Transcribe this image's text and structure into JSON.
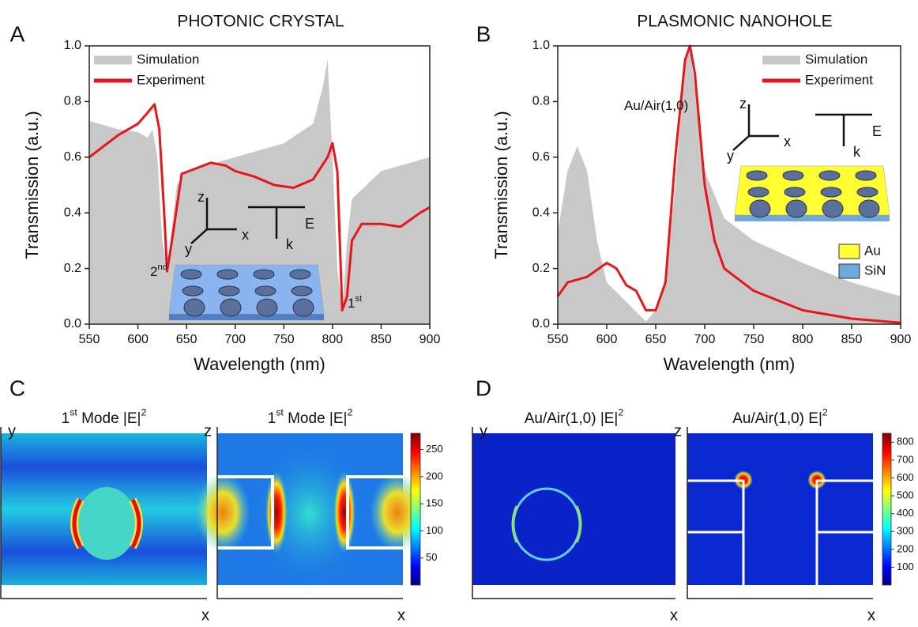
{
  "chart_data": [
    {
      "type": "line",
      "panel_label": "A",
      "title": "PHOTONIC CRYSTAL",
      "xlabel": "Wavelength (nm)",
      "ylabel": "Transmission (a.u.)",
      "xlim": [
        550,
        900
      ],
      "ylim": [
        0,
        1
      ],
      "xticks": [
        550,
        600,
        650,
        700,
        750,
        800,
        850,
        900
      ],
      "yticks": [
        {
          "value": 0,
          "label": "0.0"
        },
        0.2,
        0.4,
        0.6,
        0.8,
        {
          "value": 1,
          "label": "1.0"
        }
      ],
      "legend": "upper left",
      "series": [
        {
          "name": "Simulation",
          "color": "#c8c8c8",
          "fill": true,
          "x": [
            550,
            580,
            600,
            610,
            615,
            620,
            625,
            630,
            640,
            650,
            670,
            700,
            750,
            780,
            790,
            795,
            800,
            805,
            810,
            815,
            820,
            850,
            900
          ],
          "values": [
            0.73,
            0.7,
            0.69,
            0.67,
            0.7,
            0.6,
            0.3,
            0.2,
            0.5,
            0.55,
            0.57,
            0.6,
            0.65,
            0.72,
            0.85,
            0.95,
            0.6,
            0.2,
            0.05,
            0.3,
            0.45,
            0.55,
            0.6
          ]
        },
        {
          "name": "Experiment",
          "color": "#e8161b",
          "fill": false,
          "x": [
            550,
            580,
            600,
            610,
            617,
            622,
            627,
            630,
            635,
            645,
            660,
            675,
            690,
            700,
            720,
            740,
            760,
            780,
            795,
            800,
            805,
            810,
            815,
            820,
            830,
            850,
            870,
            890,
            900
          ],
          "values": [
            0.6,
            0.68,
            0.72,
            0.76,
            0.79,
            0.7,
            0.4,
            0.19,
            0.3,
            0.54,
            0.56,
            0.58,
            0.57,
            0.55,
            0.53,
            0.5,
            0.49,
            0.52,
            0.6,
            0.65,
            0.55,
            0.05,
            0.1,
            0.3,
            0.36,
            0.36,
            0.35,
            0.4,
            0.42
          ]
        }
      ],
      "annotations": [
        {
          "parts": [
            "2",
            "nd"
          ]
        },
        {
          "parts": [
            "1",
            "st"
          ]
        }
      ],
      "inset": {
        "axes": [
          "z",
          "y",
          "x"
        ],
        "field": "E",
        "wavevector": "k"
      }
    },
    {
      "type": "line",
      "panel_label": "B",
      "title": "PLASMONIC NANOHOLE",
      "xlabel": "Wavelength (nm)",
      "ylabel": "Transmission (a.u.)",
      "xlim": [
        550,
        900
      ],
      "ylim": [
        0,
        1
      ],
      "xticks": [
        550,
        600,
        650,
        700,
        750,
        800,
        850,
        900
      ],
      "yticks": [
        {
          "value": 0,
          "label": "0.0"
        },
        0.2,
        0.4,
        0.6,
        0.8,
        {
          "value": 1,
          "label": "1.0"
        }
      ],
      "legend": "upper right",
      "series": [
        {
          "name": "Simulation",
          "color": "#c8c8c8",
          "fill": true,
          "x": [
            550,
            560,
            570,
            580,
            590,
            600,
            620,
            640,
            650,
            660,
            670,
            680,
            685,
            690,
            700,
            720,
            750,
            800,
            850,
            900
          ],
          "values": [
            0.33,
            0.55,
            0.64,
            0.55,
            0.3,
            0.15,
            0.08,
            0.01,
            0.05,
            0.15,
            0.5,
            0.95,
            0.98,
            0.85,
            0.55,
            0.38,
            0.3,
            0.22,
            0.15,
            0.1
          ]
        },
        {
          "name": "Experiment",
          "color": "#e8161b",
          "fill": false,
          "x": [
            550,
            560,
            580,
            600,
            610,
            620,
            630,
            640,
            650,
            660,
            670,
            680,
            685,
            690,
            700,
            710,
            720,
            750,
            800,
            850,
            900
          ],
          "values": [
            0.1,
            0.15,
            0.17,
            0.22,
            0.2,
            0.14,
            0.12,
            0.05,
            0.05,
            0.15,
            0.6,
            0.95,
            1.0,
            0.9,
            0.5,
            0.3,
            0.2,
            0.12,
            0.05,
            0.02,
            0.005
          ]
        }
      ],
      "annotations": [
        {
          "parts": [
            "Au/Air(1,0)"
          ]
        }
      ],
      "inset": {
        "axes": [
          "z",
          "y",
          "x"
        ],
        "field": "E",
        "wavevector": "k",
        "materials": [
          {
            "name": "Au",
            "color": "#ffff33"
          },
          {
            "name": "SiN",
            "color": "#6fa8dc"
          }
        ]
      }
    },
    {
      "type": "heatmap",
      "panel_label": "C",
      "maps": [
        {
          "title_parts": [
            "1",
            "st",
            " Mode |E|",
            "2"
          ],
          "ylabel": "y",
          "xlabel": "x"
        },
        {
          "title_parts": [
            "1",
            "st",
            " Mode |E|",
            "2"
          ],
          "ylabel": "z",
          "xlabel": "x"
        }
      ],
      "colorbar": {
        "clim": [
          0,
          280
        ],
        "ticks": [
          50,
          100,
          150,
          200,
          250
        ]
      }
    },
    {
      "type": "heatmap",
      "panel_label": "D",
      "maps": [
        {
          "title_parts": [
            "Au/Air(1,0) |E|",
            "2"
          ],
          "ylabel": "y",
          "xlabel": "x"
        },
        {
          "title_parts": [
            "Au/Air(1,0) E|",
            "2"
          ],
          "ylabel": "z",
          "xlabel": "x"
        }
      ],
      "colorbar": {
        "clim": [
          0,
          850
        ],
        "ticks": [
          100,
          200,
          300,
          400,
          500,
          600,
          700,
          800
        ]
      }
    }
  ]
}
